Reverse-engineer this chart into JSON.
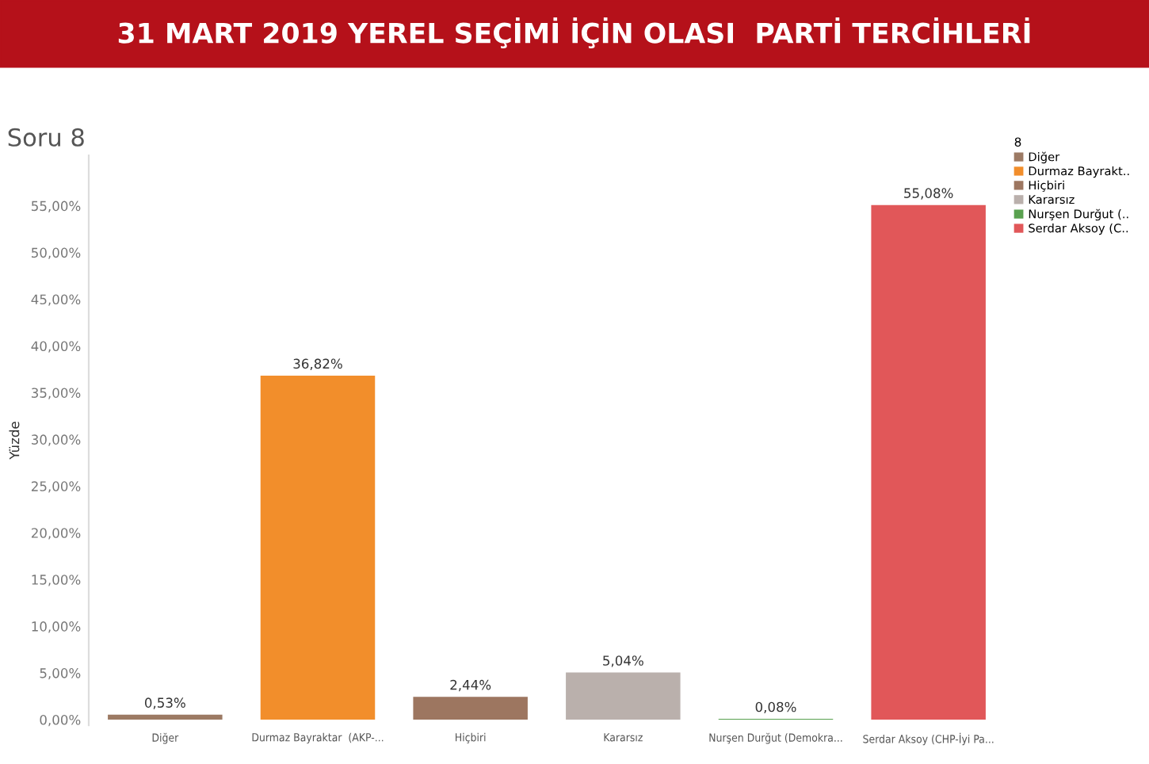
{
  "chart_data": {
    "type": "bar",
    "title": "31 MART 2019 YEREL SEÇİMİ İÇİN OLASI  PARTİ TERCİHLERİ",
    "subtitle": "Soru 8",
    "ylabel": "Yüzde",
    "legend_title": "8",
    "categories": [
      "Diğer",
      "Durmaz Bayraktar  (AKP-...",
      "Hiçbiri",
      "Kararsız",
      "Nurşen Durğut (Demokra...",
      "Serdar Aksoy (CHP-İyi Pa..."
    ],
    "series": [
      {
        "name": "Diğer",
        "color": "#9c7a64",
        "values": [
          0.53,
          null,
          null,
          null,
          null,
          null
        ],
        "value_labels": [
          "0,53%",
          null,
          null,
          null,
          null,
          null
        ]
      },
      {
        "name": "Durmaz Bayrakt..",
        "color": "#f28e2b",
        "values": [
          null,
          36.82,
          null,
          null,
          null,
          null
        ],
        "value_labels": [
          null,
          "36,82%",
          null,
          null,
          null,
          null
        ]
      },
      {
        "name": "Hiçbiri",
        "color": "#9d7660",
        "values": [
          null,
          null,
          2.44,
          null,
          null,
          null
        ],
        "value_labels": [
          null,
          null,
          "2,44%",
          null,
          null,
          null
        ]
      },
      {
        "name": "Kararsız",
        "color": "#bab0ac",
        "values": [
          null,
          null,
          null,
          5.04,
          null,
          null
        ],
        "value_labels": [
          null,
          null,
          null,
          "5,04%",
          null,
          null
        ]
      },
      {
        "name": "Nurşen Durğut (..",
        "color": "#59a14f",
        "values": [
          null,
          null,
          null,
          null,
          0.08,
          null
        ],
        "value_labels": [
          null,
          null,
          null,
          null,
          "0,08%",
          null
        ]
      },
      {
        "name": "Serdar Aksoy (C..",
        "color": "#e15759",
        "values": [
          null,
          null,
          null,
          null,
          null,
          55.08
        ],
        "value_labels": [
          null,
          null,
          null,
          null,
          null,
          "55,08%"
        ]
      }
    ],
    "ylim": [
      -0.6,
      60.4
    ],
    "yticks": [
      {
        "value": 0,
        "label": "0,00%"
      },
      {
        "value": 5,
        "label": "5,00%"
      },
      {
        "value": 10,
        "label": "10,00%"
      },
      {
        "value": 15,
        "label": "15,00%"
      },
      {
        "value": 20,
        "label": "20,00%"
      },
      {
        "value": 25,
        "label": "25,00%"
      },
      {
        "value": 30,
        "label": "30,00%"
      },
      {
        "value": 35,
        "label": "35,00%"
      },
      {
        "value": 40,
        "label": "40,00%"
      },
      {
        "value": 45,
        "label": "45,00%"
      },
      {
        "value": 50,
        "label": "50,00%"
      },
      {
        "value": 55,
        "label": "55,00%"
      }
    ],
    "legend": "right"
  }
}
